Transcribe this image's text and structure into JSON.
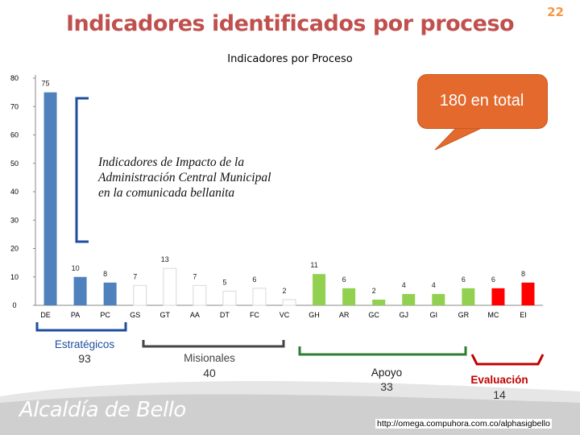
{
  "header": {
    "title": "Indicadores identificados por proceso",
    "slide_number": "22"
  },
  "callout": {
    "text": "180 en total"
  },
  "impact_note": {
    "line1": "Indicadores de Impacto de la",
    "line2": "Administración Central Municipal",
    "line3": "en la comunicada bellanita"
  },
  "groups": {
    "estrategicos": {
      "name": "Estratégicos",
      "count": "93"
    },
    "misionales": {
      "name": "Misionales",
      "count": "40"
    },
    "apoyo": {
      "name": "Apoyo",
      "count": "33"
    },
    "evaluacion": {
      "name": "Evaluación",
      "count": "14"
    }
  },
  "footer": {
    "brand": "Alcaldía de Bello",
    "url": "http://omega.compuhora.com.co/alphasigbello"
  },
  "colors": {
    "title": "#c0504d",
    "strategic_bar": "#4f81bd",
    "mission_bar": "#ffffff",
    "support_bar": "#92d050",
    "evaluation_bar": "#ff0000",
    "callout": "#e3692d",
    "brace_blue": "#1f4e9c",
    "brace_gray": "#444444",
    "brace_green": "#2e7d32",
    "brace_red": "#c00000"
  },
  "chart_data": {
    "type": "bar",
    "title": "Indicadores por Proceso",
    "xlabel": "",
    "ylabel": "",
    "ylim": [
      0,
      80
    ],
    "yticks": [
      0,
      10,
      20,
      30,
      40,
      50,
      60,
      70,
      80
    ],
    "categories": [
      "DE",
      "PA",
      "PC",
      "GS",
      "GT",
      "AA",
      "DT",
      "FC",
      "VC",
      "GH",
      "AR",
      "GC",
      "GJ",
      "GI",
      "GR",
      "MC",
      "EI"
    ],
    "values": [
      75,
      10,
      8,
      7,
      13,
      7,
      5,
      6,
      2,
      11,
      6,
      2,
      4,
      4,
      6,
      6,
      8
    ],
    "data_labels": [
      "75",
      "10",
      "8",
      "7",
      "13",
      "7",
      "5",
      "6",
      "2",
      "11",
      "6",
      "2",
      "4",
      "4",
      "6",
      "6",
      "8"
    ],
    "groups": [
      "estrategicos",
      "estrategicos",
      "estrategicos",
      "misionales",
      "misionales",
      "misionales",
      "misionales",
      "misionales",
      "misionales",
      "apoyo",
      "apoyo",
      "apoyo",
      "apoyo",
      "apoyo",
      "apoyo",
      "evaluacion",
      "evaluacion"
    ],
    "grid": false,
    "legend": "none"
  }
}
